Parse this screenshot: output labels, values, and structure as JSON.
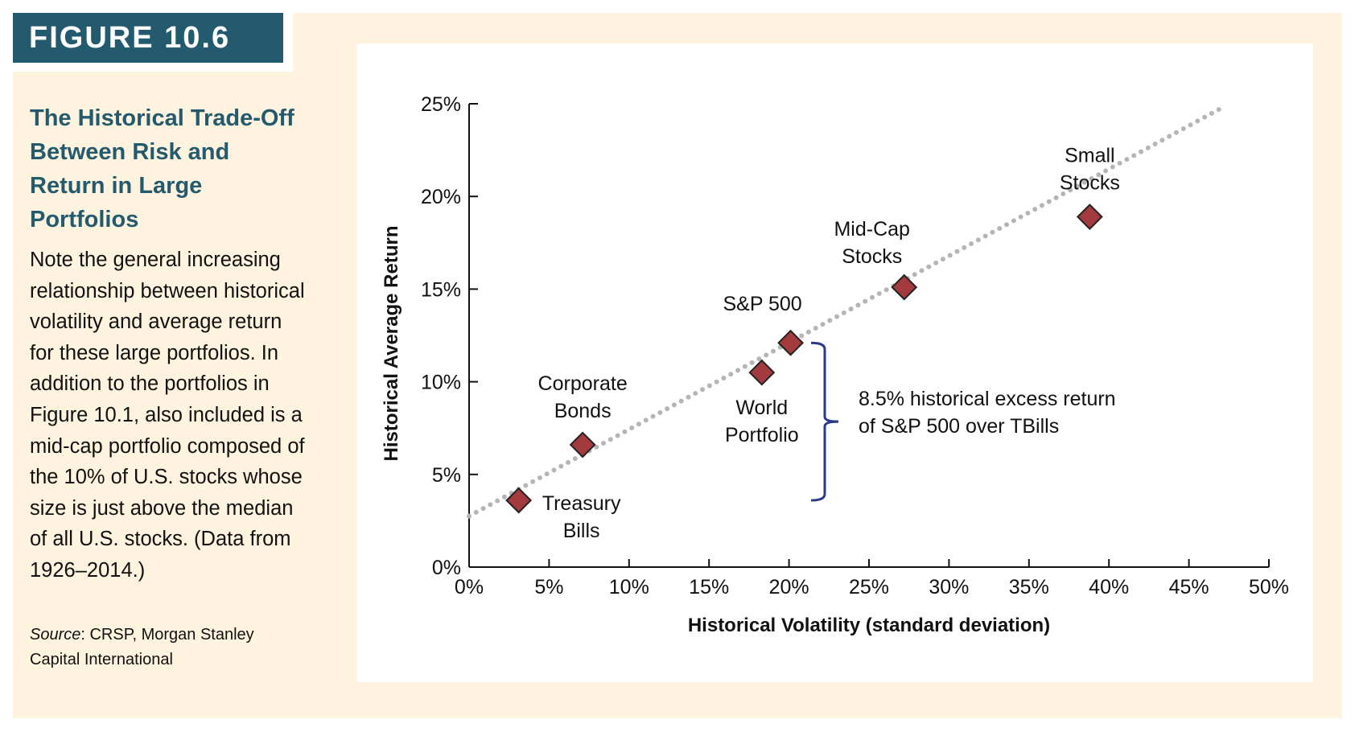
{
  "figure_label": "FIGURE 10.6",
  "caption": {
    "title": "The Historical Trade-Off Between Risk and Return in Large Portfolios",
    "body": "Note the general increasing relationship between historical volatility and average return for these large portfolios. In addition to the portfolios in Figure 10.1, also included is a mid-cap portfolio composed of the 10% of U.S. stocks whose size is just above the median of all U.S. stocks. (Data from 1926–2014.)",
    "source_label": "Source",
    "source_text": ": CRSP, Morgan Stanley Capital International"
  },
  "colors": {
    "title_bar": "#245a6e",
    "panel": "#fef3de",
    "marker": "#a33a3e",
    "trend": "#b5b5b5",
    "bracket": "#2a3a8a"
  },
  "chart_data": {
    "type": "scatter",
    "xlabel": "Historical Volatility (standard deviation)",
    "ylabel": "Historical Average Return",
    "xlim": [
      0,
      50
    ],
    "ylim": [
      0,
      25
    ],
    "xticks": [
      "0%",
      "5%",
      "10%",
      "15%",
      "20%",
      "25%",
      "30%",
      "35%",
      "40%",
      "45%",
      "50%"
    ],
    "yticks": [
      "0%",
      "5%",
      "10%",
      "15%",
      "20%",
      "25%"
    ],
    "grid": false,
    "points": [
      {
        "name": "Treasury Bills",
        "lines": [
          "Treasury",
          "Bills"
        ],
        "x": 3.1,
        "y": 3.6
      },
      {
        "name": "Corporate Bonds",
        "lines": [
          "Corporate",
          "Bonds"
        ],
        "x": 7.1,
        "y": 6.6
      },
      {
        "name": "World Portfolio",
        "lines": [
          "World",
          "Portfolio"
        ],
        "x": 18.3,
        "y": 10.5
      },
      {
        "name": "S&P 500",
        "lines": [
          "S&P 500"
        ],
        "x": 20.1,
        "y": 12.1
      },
      {
        "name": "Mid-Cap Stocks",
        "lines": [
          "Mid-Cap",
          "Stocks"
        ],
        "x": 27.2,
        "y": 15.1
      },
      {
        "name": "Small Stocks",
        "lines": [
          "Small",
          "Stocks"
        ],
        "x": 38.8,
        "y": 18.9
      }
    ],
    "trend_line": {
      "style": "dotted",
      "from": [
        0,
        2.75
      ],
      "to": [
        47.1,
        24.8
      ]
    },
    "annotation": {
      "lines": [
        "8.5% historical excess return",
        "of S&P 500 over TBills"
      ],
      "bracket_from": 3.6,
      "bracket_to": 12.1
    }
  }
}
